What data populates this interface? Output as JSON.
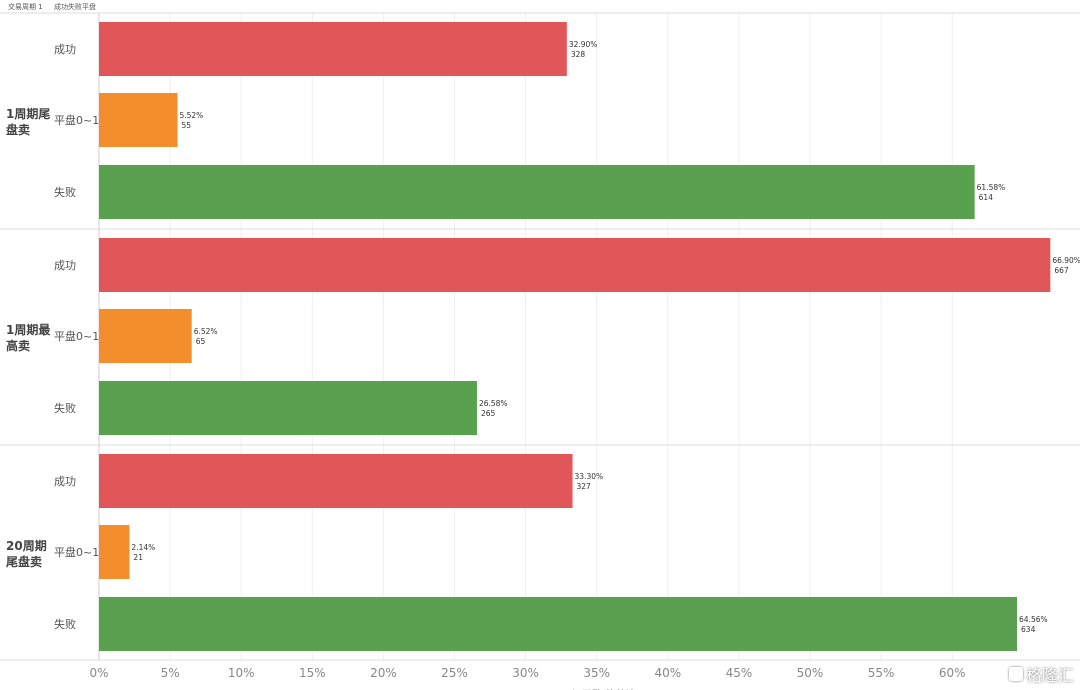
{
  "header": {
    "field_1": "交易周期 1",
    "field_2": "成功失败平盘"
  },
  "watermark": {
    "text": "格隆汇"
  },
  "colors": {
    "success": "#e15759",
    "flat": "#f28e2b",
    "fail": "#59a14f",
    "grid": "#eeeeee",
    "separator": "#dddddd"
  },
  "chart_data": {
    "type": "bar",
    "orientation": "horizontal",
    "xlabel": "记录数 的总计 %",
    "xlim": [
      0,
      70
    ],
    "x_ticks": [
      "0%",
      "5%",
      "10%",
      "15%",
      "20%",
      "25%",
      "30%",
      "35%",
      "40%",
      "45%",
      "50%",
      "55%",
      "60%"
    ],
    "grid": true,
    "groups": [
      {
        "name": "1周期尾盘卖",
        "bars": [
          {
            "category": "成功",
            "percent": 32.9,
            "percent_label": "32.90%",
            "count": "328",
            "color": "#e15759"
          },
          {
            "category": "平盘0~1",
            "percent": 5.52,
            "percent_label": "5.52%",
            "count": "55",
            "color": "#f28e2b"
          },
          {
            "category": "失败",
            "percent": 61.58,
            "percent_label": "61.58%",
            "count": "614",
            "color": "#59a14f"
          }
        ]
      },
      {
        "name": "1周期最高卖",
        "bars": [
          {
            "category": "成功",
            "percent": 66.9,
            "percent_label": "66.90%",
            "count": "667",
            "color": "#e15759"
          },
          {
            "category": "平盘0~1",
            "percent": 6.52,
            "percent_label": "6.52%",
            "count": "65",
            "color": "#f28e2b"
          },
          {
            "category": "失败",
            "percent": 26.58,
            "percent_label": "26.58%",
            "count": "265",
            "color": "#59a14f"
          }
        ]
      },
      {
        "name": "20周期尾盘卖",
        "bars": [
          {
            "category": "成功",
            "percent": 33.3,
            "percent_label": "33.30%",
            "count": "327",
            "color": "#e15759"
          },
          {
            "category": "平盘0~1",
            "percent": 2.14,
            "percent_label": "2.14%",
            "count": "21",
            "color": "#f28e2b"
          },
          {
            "category": "失败",
            "percent": 64.56,
            "percent_label": "64.56%",
            "count": "634",
            "color": "#59a14f"
          }
        ]
      }
    ]
  }
}
